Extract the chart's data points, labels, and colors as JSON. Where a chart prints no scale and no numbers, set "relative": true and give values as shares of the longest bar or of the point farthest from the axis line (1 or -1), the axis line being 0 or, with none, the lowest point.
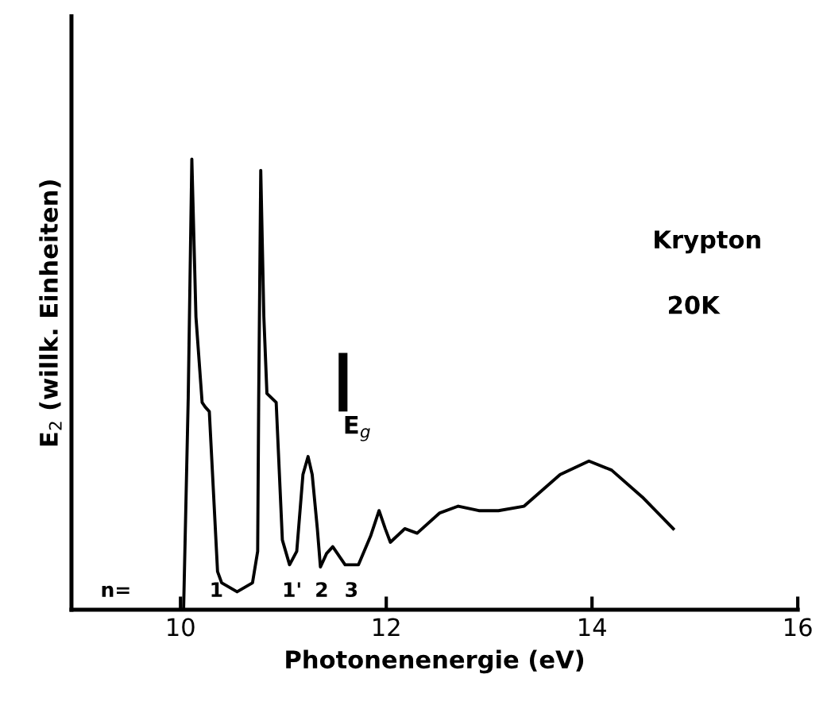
{
  "chart_data": {
    "type": "line",
    "relative": true,
    "xlabel": "Photonenenergie (eV)",
    "ylabel": "E$_{2}$ (willk. Einheiten)",
    "xlim": [
      8.94,
      16
    ],
    "xticks": [
      10,
      12,
      14,
      16
    ],
    "grid": false,
    "legend": false,
    "marker": "none",
    "line_style": "solid",
    "tick_labels": "x",
    "x": [
      10.03,
      10.075,
      10.11,
      10.15,
      10.21,
      10.24,
      10.28,
      10.36,
      10.4,
      10.55,
      10.7,
      10.75,
      10.76,
      10.78,
      10.81,
      10.84,
      10.93,
      10.99,
      11.06,
      11.13,
      11.19,
      11.24,
      11.28,
      11.33,
      11.36,
      11.42,
      11.48,
      11.6,
      11.73,
      11.85,
      11.93,
      11.99,
      12.04,
      12.18,
      12.3,
      12.52,
      12.7,
      12.9,
      13.09,
      13.34,
      13.69,
      13.97,
      14.19,
      14.49,
      14.79
    ],
    "series": [
      {
        "color": "#000000",
        "values": [
          0,
          0.47,
          1.0,
          0.65,
          0.46,
          0.45,
          0.44,
          0.085,
          0.06,
          0.04,
          0.06,
          0.13,
          0.47,
          0.975,
          0.65,
          0.48,
          0.46,
          0.155,
          0.1,
          0.13,
          0.3,
          0.34,
          0.3,
          0.18,
          0.095,
          0.125,
          0.14,
          0.1,
          0.1,
          0.165,
          0.22,
          0.18,
          0.15,
          0.18,
          0.17,
          0.215,
          0.23,
          0.22,
          0.22,
          0.23,
          0.3,
          0.33,
          0.31,
          0.25,
          0.18
        ]
      }
    ],
    "ref_lines": [
      {
        "axis": "x",
        "value": 11.58,
        "label": "E$_{g}$",
        "color": "#000000"
      }
    ],
    "annotations": [
      "n=",
      "1",
      "1'",
      "2",
      "3",
      "Krypton",
      "20K"
    ]
  }
}
